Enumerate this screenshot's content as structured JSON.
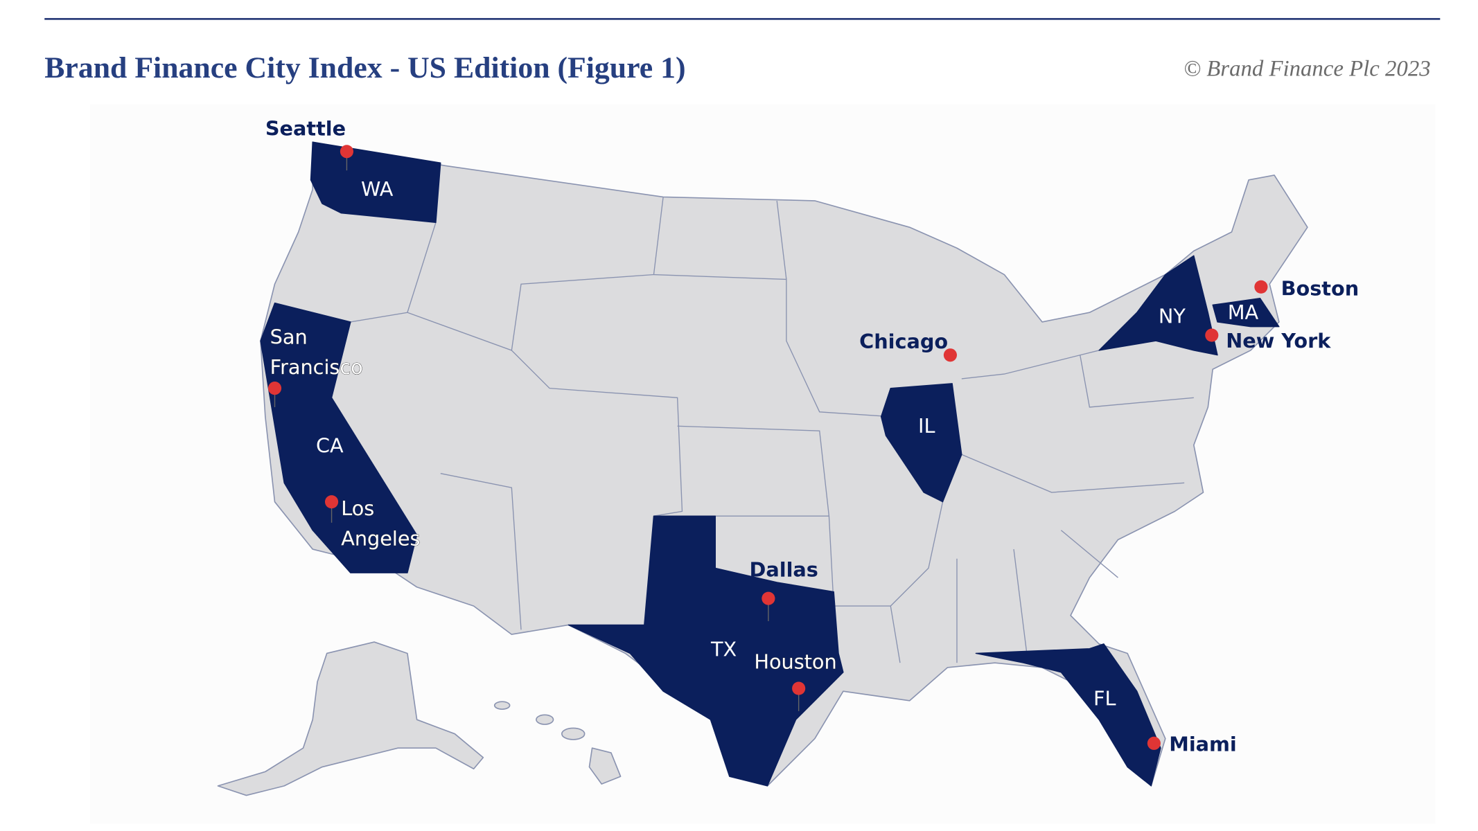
{
  "header": {
    "title": "Brand Finance City Index - US Edition (Figure 1)",
    "copyright": "© Brand Finance Plc 2023"
  },
  "map": {
    "states": [
      {
        "label": "WA"
      },
      {
        "label": "CA"
      },
      {
        "label": "TX"
      },
      {
        "label": "IL"
      },
      {
        "label": "NY"
      },
      {
        "label": "MA"
      },
      {
        "label": "FL"
      }
    ],
    "cities": [
      {
        "label": "Seattle"
      },
      {
        "label": "San Francisco"
      },
      {
        "label": "Los Angeles"
      },
      {
        "label": "Dallas"
      },
      {
        "label": "Houston"
      },
      {
        "label": "Chicago"
      },
      {
        "label": "New York"
      },
      {
        "label": "Boston"
      },
      {
        "label": "Miami"
      }
    ]
  }
}
